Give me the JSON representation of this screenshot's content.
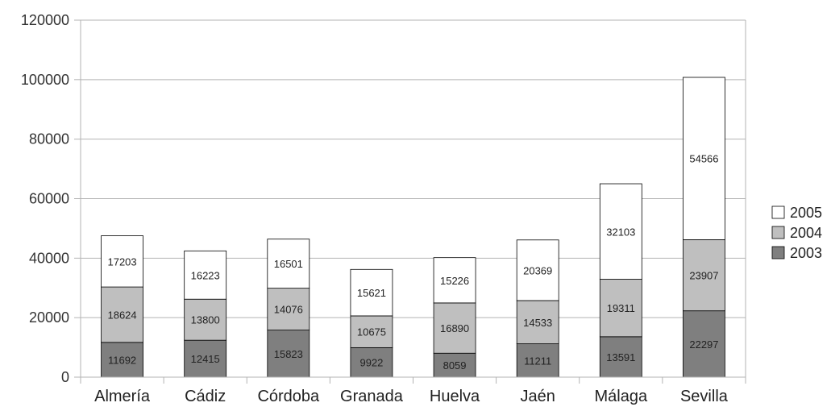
{
  "chart_data": {
    "type": "bar",
    "stacked": true,
    "categories": [
      "Almería",
      "Cádiz",
      "Córdoba",
      "Granada",
      "Huelva",
      "Jaén",
      "Málaga",
      "Sevilla"
    ],
    "series": [
      {
        "name": "2003",
        "color": "#7f7f7f",
        "values": [
          11692,
          12415,
          15823,
          9922,
          8059,
          11211,
          13591,
          22297
        ]
      },
      {
        "name": "2004",
        "color": "#bfbfbf",
        "values": [
          18624,
          13800,
          14076,
          10675,
          16890,
          14533,
          19311,
          23907
        ]
      },
      {
        "name": "2005",
        "color": "#ffffff",
        "values": [
          17203,
          16223,
          16501,
          15621,
          15226,
          20369,
          32103,
          54566
        ]
      }
    ],
    "ylim": [
      0,
      120000
    ],
    "yticks": [
      "0",
      "20000",
      "40000",
      "60000",
      "80000",
      "100000",
      "120000"
    ],
    "grid": true,
    "legend_position": "right",
    "title": "",
    "xlabel": "",
    "ylabel": ""
  }
}
